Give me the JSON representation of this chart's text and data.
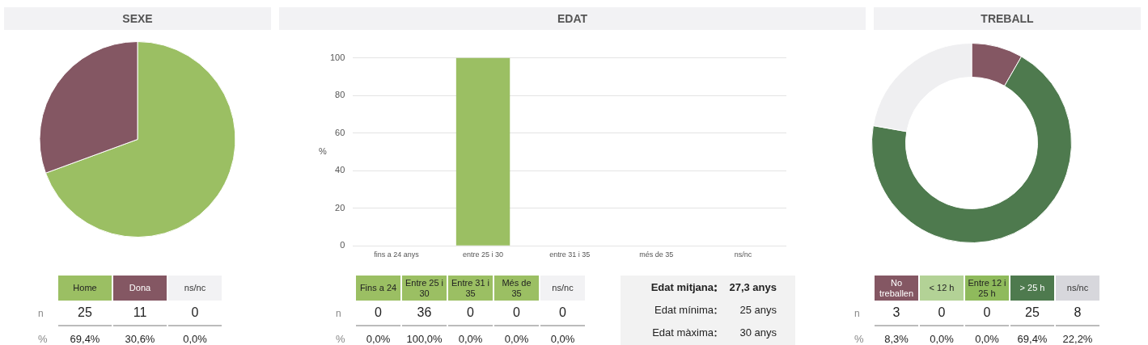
{
  "chart_data": [
    {
      "type": "pie",
      "title": "SEXE",
      "values": [
        69.4,
        30.6,
        0
      ],
      "colors": [
        "#9bbf63",
        "#845763",
        "#f2f2f4"
      ]
    },
    {
      "type": "other",
      "categories": [
        "Home",
        "Dona",
        "ns/nc"
      ],
      "colors": [
        "#9bbf63",
        "#845763",
        "#f2f2f4"
      ],
      "data_labels": true,
      "series": [
        {
          "name": "n",
          "values": [
            25,
            11,
            0
          ]
        },
        {
          "name": "%",
          "values": [
            69.4,
            30.6,
            0
          ],
          "value_labels": [
            "69,4%",
            "30,6%",
            "0,0%"
          ]
        }
      ]
    },
    {
      "type": "bar",
      "title": "EDAT",
      "ylabel": "%",
      "categories": [
        "fins a 24 anys",
        "entre 25 i 30",
        "entre 31 i 35",
        "més de 35",
        "ns/nc"
      ],
      "values": [
        0,
        100,
        0,
        0,
        0
      ],
      "color": "#9bbf63",
      "ylim": [
        0,
        100
      ],
      "yticks": [
        0,
        20,
        40,
        60,
        80,
        100
      ],
      "grid": "y",
      "legend": false
    },
    {
      "type": "other",
      "categories": [
        "Fins a 24",
        "Entre 25 i 30",
        "Entre 31 i 35",
        "Més de 35",
        "ns/nc"
      ],
      "colors": [
        "#9bbf63",
        "#9bbf63",
        "#9bbf63",
        "#9bbf63",
        "#f2f2f4"
      ],
      "data_labels": true,
      "series": [
        {
          "name": "n",
          "values": [
            0,
            36,
            0,
            0,
            0
          ]
        },
        {
          "name": "%",
          "values": [
            0,
            100,
            0,
            0,
            0
          ],
          "value_labels": [
            "0,0%",
            "100,0%",
            "0,0%",
            "0,0%",
            "0,0%"
          ]
        }
      ]
    },
    {
      "type": "other",
      "categories": [
        "Edat mitjana",
        "Edat mínima",
        "Edat màxima"
      ],
      "value_labels": [
        "27,3 anys",
        "25 anys",
        "30 anys"
      ]
    },
    {
      "type": "donut",
      "title": "TREBALL",
      "values": [
        8.3,
        0,
        0,
        69.4,
        22.2
      ],
      "colors": [
        "#845763",
        "#a8cc8a",
        "#9bbf63",
        "#4e7a4e",
        "#efeff1"
      ]
    },
    {
      "type": "other",
      "categories": [
        "No treballen",
        "< 12 h",
        "Entre 12 i 25 h",
        "> 25 h",
        "ns/nc"
      ],
      "colors": [
        "#845763",
        "#b3d296",
        "#8fba5c",
        "#4e7a4e",
        "#d7d7dc"
      ],
      "data_labels": true,
      "series": [
        {
          "name": "n",
          "values": [
            3,
            0,
            0,
            25,
            8
          ]
        },
        {
          "name": "%",
          "values": [
            8.3,
            0,
            0,
            69.4,
            22.2
          ],
          "value_labels": [
            "8,3%",
            "0,0%",
            "0,0%",
            "69,4%",
            "22,2%"
          ]
        }
      ]
    }
  ]
}
